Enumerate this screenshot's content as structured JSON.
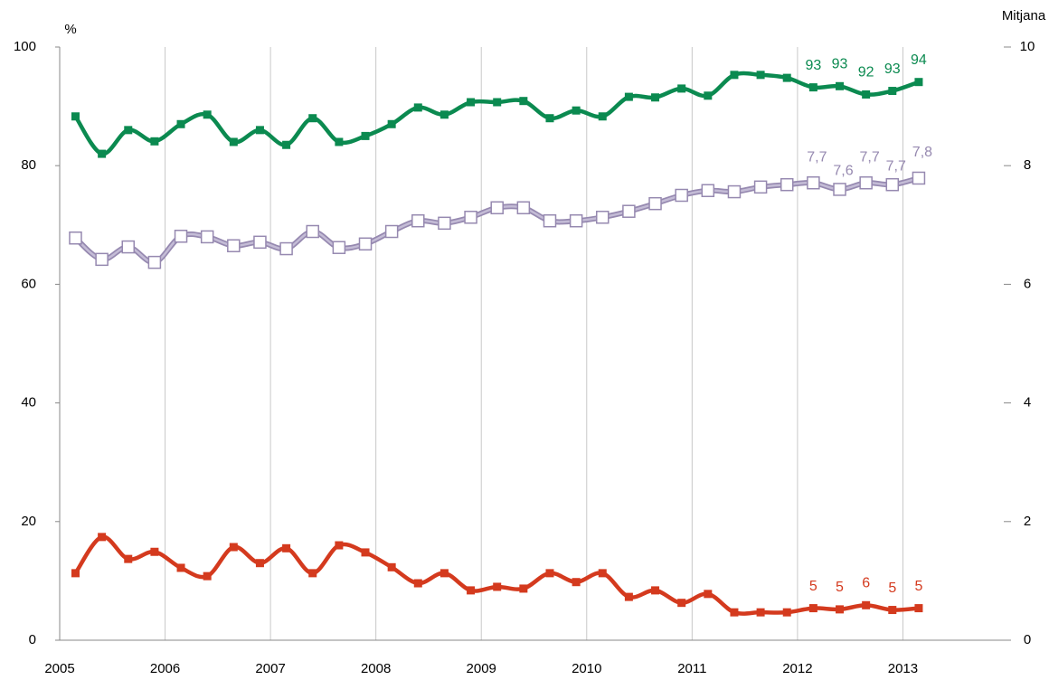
{
  "chart_data": {
    "type": "line",
    "y_label": "%",
    "y2_label": "Mitjana",
    "x": [
      2005.15,
      2005.4,
      2005.65,
      2005.9,
      2006.15,
      2006.4,
      2006.65,
      2006.9,
      2007.15,
      2007.4,
      2007.65,
      2007.9,
      2008.15,
      2008.4,
      2008.65,
      2008.9,
      2009.15,
      2009.4,
      2009.65,
      2009.9,
      2010.15,
      2010.4,
      2010.65,
      2010.9,
      2011.15,
      2011.4,
      2011.65,
      2011.9,
      2012.15,
      2012.4,
      2012.65,
      2012.9,
      2013.15
    ],
    "xlim": [
      2005,
      2014
    ],
    "xticks": [
      2005,
      2006,
      2007,
      2008,
      2009,
      2010,
      2011,
      2012,
      2013
    ],
    "ylim": [
      0,
      100
    ],
    "yticks": [
      0,
      20,
      40,
      60,
      80,
      100
    ],
    "y2lim": [
      0,
      10
    ],
    "y2ticks": [
      0,
      2,
      4,
      6,
      8,
      10
    ],
    "grid": true,
    "series": [
      {
        "color": "#0b8a50",
        "marker": "filled",
        "values": [
          88.3,
          82,
          86,
          84.1,
          87,
          88.6,
          84,
          86,
          83.5,
          88,
          84,
          85,
          87,
          89.8,
          88.6,
          90.7,
          90.7,
          90.9,
          88,
          89.3,
          88.3,
          91.6,
          91.5,
          93,
          91.8,
          95.3,
          95.3,
          94.8,
          93.2,
          93.4,
          92,
          92.6,
          94.1
        ],
        "value_labels": [
          null,
          null,
          null,
          null,
          null,
          null,
          null,
          null,
          null,
          null,
          null,
          null,
          null,
          null,
          null,
          null,
          null,
          null,
          null,
          null,
          null,
          null,
          null,
          null,
          null,
          null,
          null,
          null,
          "93",
          "93",
          "92",
          "93",
          "94"
        ]
      },
      {
        "color": "#9689b0",
        "marker": "open",
        "axis": "y2",
        "values": [
          6.78,
          6.42,
          6.63,
          6.37,
          6.81,
          6.8,
          6.65,
          6.71,
          6.6,
          6.89,
          6.62,
          6.68,
          6.89,
          7.07,
          7.03,
          7.13,
          7.29,
          7.29,
          7.07,
          7.07,
          7.13,
          7.23,
          7.36,
          7.5,
          7.58,
          7.56,
          7.64,
          7.68,
          7.71,
          7.6,
          7.71,
          7.68,
          7.79
        ],
        "value_labels": [
          null,
          null,
          null,
          null,
          null,
          null,
          null,
          null,
          null,
          null,
          null,
          null,
          null,
          null,
          null,
          null,
          null,
          null,
          null,
          null,
          null,
          null,
          null,
          null,
          null,
          null,
          null,
          null,
          "7,7",
          "7,6",
          "7,7",
          "7,7",
          "7,8"
        ]
      },
      {
        "color": "#d43a1e",
        "marker": "filled",
        "values": [
          11.3,
          17.4,
          13.7,
          14.9,
          12.2,
          10.8,
          15.7,
          13,
          15.5,
          11.3,
          16,
          14.8,
          12.3,
          9.6,
          11.3,
          8.4,
          9,
          8.7,
          11.3,
          9.8,
          11.3,
          7.3,
          8.4,
          6.3,
          7.8,
          4.7,
          4.7,
          4.7,
          5.4,
          5.2,
          5.9,
          5.1,
          5.4
        ],
        "value_labels": [
          null,
          null,
          null,
          null,
          null,
          null,
          null,
          null,
          null,
          null,
          null,
          null,
          null,
          null,
          null,
          null,
          null,
          null,
          null,
          null,
          null,
          null,
          null,
          null,
          null,
          null,
          null,
          null,
          "5",
          "5",
          "6",
          "5",
          "5"
        ]
      }
    ]
  }
}
